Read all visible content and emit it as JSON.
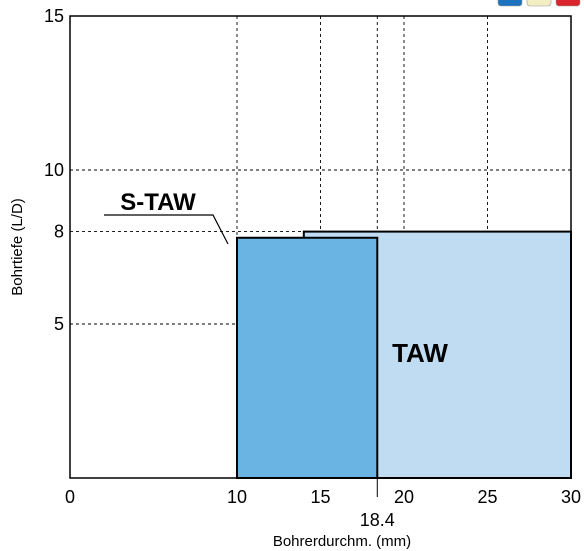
{
  "chart_data": {
    "type": "bar",
    "xlabel": "Bohrerdurchm. (mm)",
    "ylabel": "Bohrtiefe (L/D)",
    "xlim": [
      0,
      30
    ],
    "ylim": [
      0,
      15
    ],
    "x_ticks": [
      0,
      10,
      15,
      20,
      25,
      30
    ],
    "y_ticks": [
      5,
      8,
      10,
      15
    ],
    "extra_x_marker": 18.4,
    "grid": true,
    "series": [
      {
        "name": "TAW",
        "x_start": 14.0,
        "x_end": 30.0,
        "depth": 8,
        "color": "#bfdcf3"
      },
      {
        "name": "S-TAW",
        "x_start": 10.0,
        "x_end": 18.4,
        "depth": 7.8,
        "color": "#6ab4e4"
      }
    ]
  },
  "legend_swatches": [
    {
      "icon": "blue-square-icon",
      "color": "#1e73be"
    },
    {
      "icon": "yellow-square-icon",
      "color": "#f3eec4"
    },
    {
      "icon": "red-square-icon",
      "color": "#d9252b"
    }
  ]
}
